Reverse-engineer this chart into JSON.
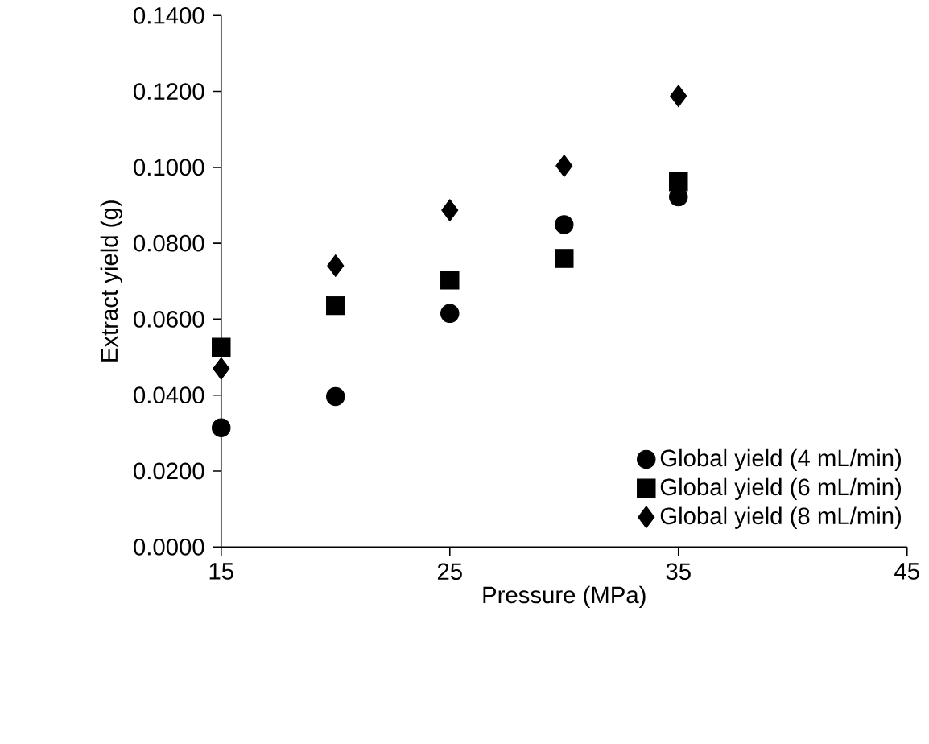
{
  "chart_data": {
    "type": "scatter",
    "xlabel": "Pressure (MPa)",
    "ylabel": "Extract yield (g)",
    "x": [
      15,
      20,
      25,
      30,
      35
    ],
    "series": [
      {
        "name": "Global yield (4 mL/min)",
        "color": "#000000",
        "marker": "circle",
        "values": [
          0.0314,
          0.0396,
          0.0615,
          0.0849,
          0.0922
        ]
      },
      {
        "name": "Global yield (6 mL/min)",
        "color": "#000000",
        "marker": "square",
        "values": [
          0.0526,
          0.0636,
          0.0703,
          0.076,
          0.0962
        ]
      },
      {
        "name": "Global yield (8 mL/min)",
        "color": "#000000",
        "marker": "diamond",
        "values": [
          0.047,
          0.0741,
          0.0887,
          0.1004,
          0.1188
        ]
      }
    ],
    "xlim": [
      15,
      45
    ],
    "xticks": [
      15,
      25,
      35,
      45
    ],
    "ylim": [
      0,
      0.14
    ],
    "yticks": [
      {
        "value": 0,
        "label": "0.0000"
      },
      {
        "value": 0.02,
        "label": "0.0200"
      },
      {
        "value": 0.04,
        "label": "0.0400"
      },
      {
        "value": 0.06,
        "label": "0.0600"
      },
      {
        "value": 0.08,
        "label": "0.0800"
      },
      {
        "value": 0.1,
        "label": "0.1000"
      },
      {
        "value": 0.12,
        "label": "0.1200"
      },
      {
        "value": 0.14,
        "label": "0.1400"
      }
    ],
    "legend": "bottom right",
    "grid": false
  }
}
